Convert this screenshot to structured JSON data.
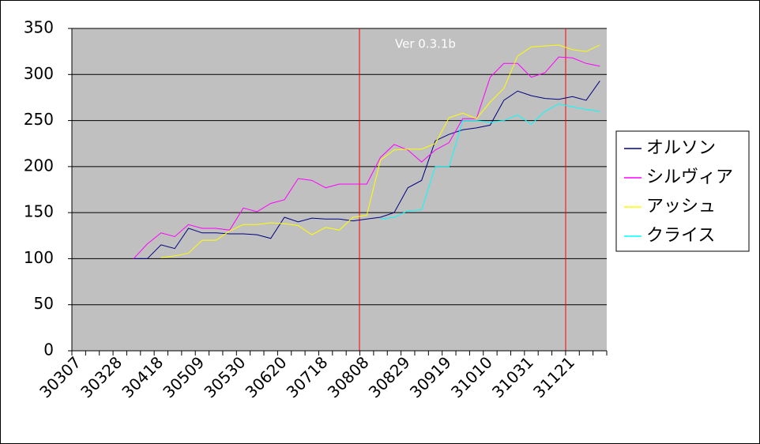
{
  "chart_data": {
    "type": "line",
    "annotation": "Ver 0.3.1b",
    "categories": [
      "30307",
      null,
      null,
      "30328",
      null,
      null,
      "30418",
      null,
      null,
      "30509",
      null,
      null,
      "30530",
      null,
      null,
      "30620",
      null,
      null,
      "30718",
      null,
      null,
      "30808",
      null,
      null,
      "30829",
      null,
      null,
      "30919",
      null,
      null,
      "31010",
      null,
      null,
      "31031",
      null,
      null,
      "31121",
      null,
      null
    ],
    "series": [
      {
        "name": "オルソン",
        "color": "#000080",
        "values": [
          null,
          null,
          null,
          null,
          100,
          100,
          115,
          111,
          133,
          128,
          128,
          127,
          127,
          126,
          122,
          145,
          140,
          144,
          143,
          143,
          141,
          143,
          145,
          150,
          177,
          185,
          228,
          235,
          240,
          242,
          245,
          272,
          282,
          277,
          274,
          273,
          276,
          272,
          293
        ]
      },
      {
        "name": "シルヴィア",
        "color": "#ff00ff",
        "values": [
          null,
          null,
          null,
          null,
          100,
          116,
          128,
          124,
          137,
          133,
          133,
          131,
          155,
          151,
          160,
          164,
          187,
          185,
          177,
          181,
          181,
          181,
          210,
          224,
          218,
          205,
          218,
          226,
          252,
          252,
          297,
          312,
          312,
          297,
          302,
          319,
          318,
          312,
          309
        ]
      },
      {
        "name": "アッシュ",
        "color": "#ffff00",
        "values": [
          null,
          null,
          null,
          null,
          null,
          null,
          101,
          103,
          106,
          120,
          120,
          130,
          137,
          137,
          139,
          138,
          136,
          126,
          134,
          131,
          145,
          147,
          207,
          218,
          219,
          219,
          225,
          253,
          258,
          252,
          270,
          285,
          320,
          330,
          331,
          332,
          327,
          325,
          332
        ]
      },
      {
        "name": "クライス",
        "color": "#00ffff",
        "values": [
          null,
          null,
          null,
          null,
          null,
          null,
          null,
          null,
          null,
          null,
          null,
          null,
          null,
          null,
          null,
          null,
          null,
          null,
          null,
          null,
          null,
          null,
          143,
          145,
          152,
          153,
          200,
          200,
          250,
          250,
          248,
          250,
          256,
          246,
          260,
          268,
          265,
          262,
          260
        ]
      }
    ],
    "ylim": [
      0,
      350
    ],
    "yticks": [
      0,
      50,
      100,
      150,
      200,
      250,
      300,
      350
    ],
    "grid": true,
    "plot_background": "#c0c0c0"
  }
}
